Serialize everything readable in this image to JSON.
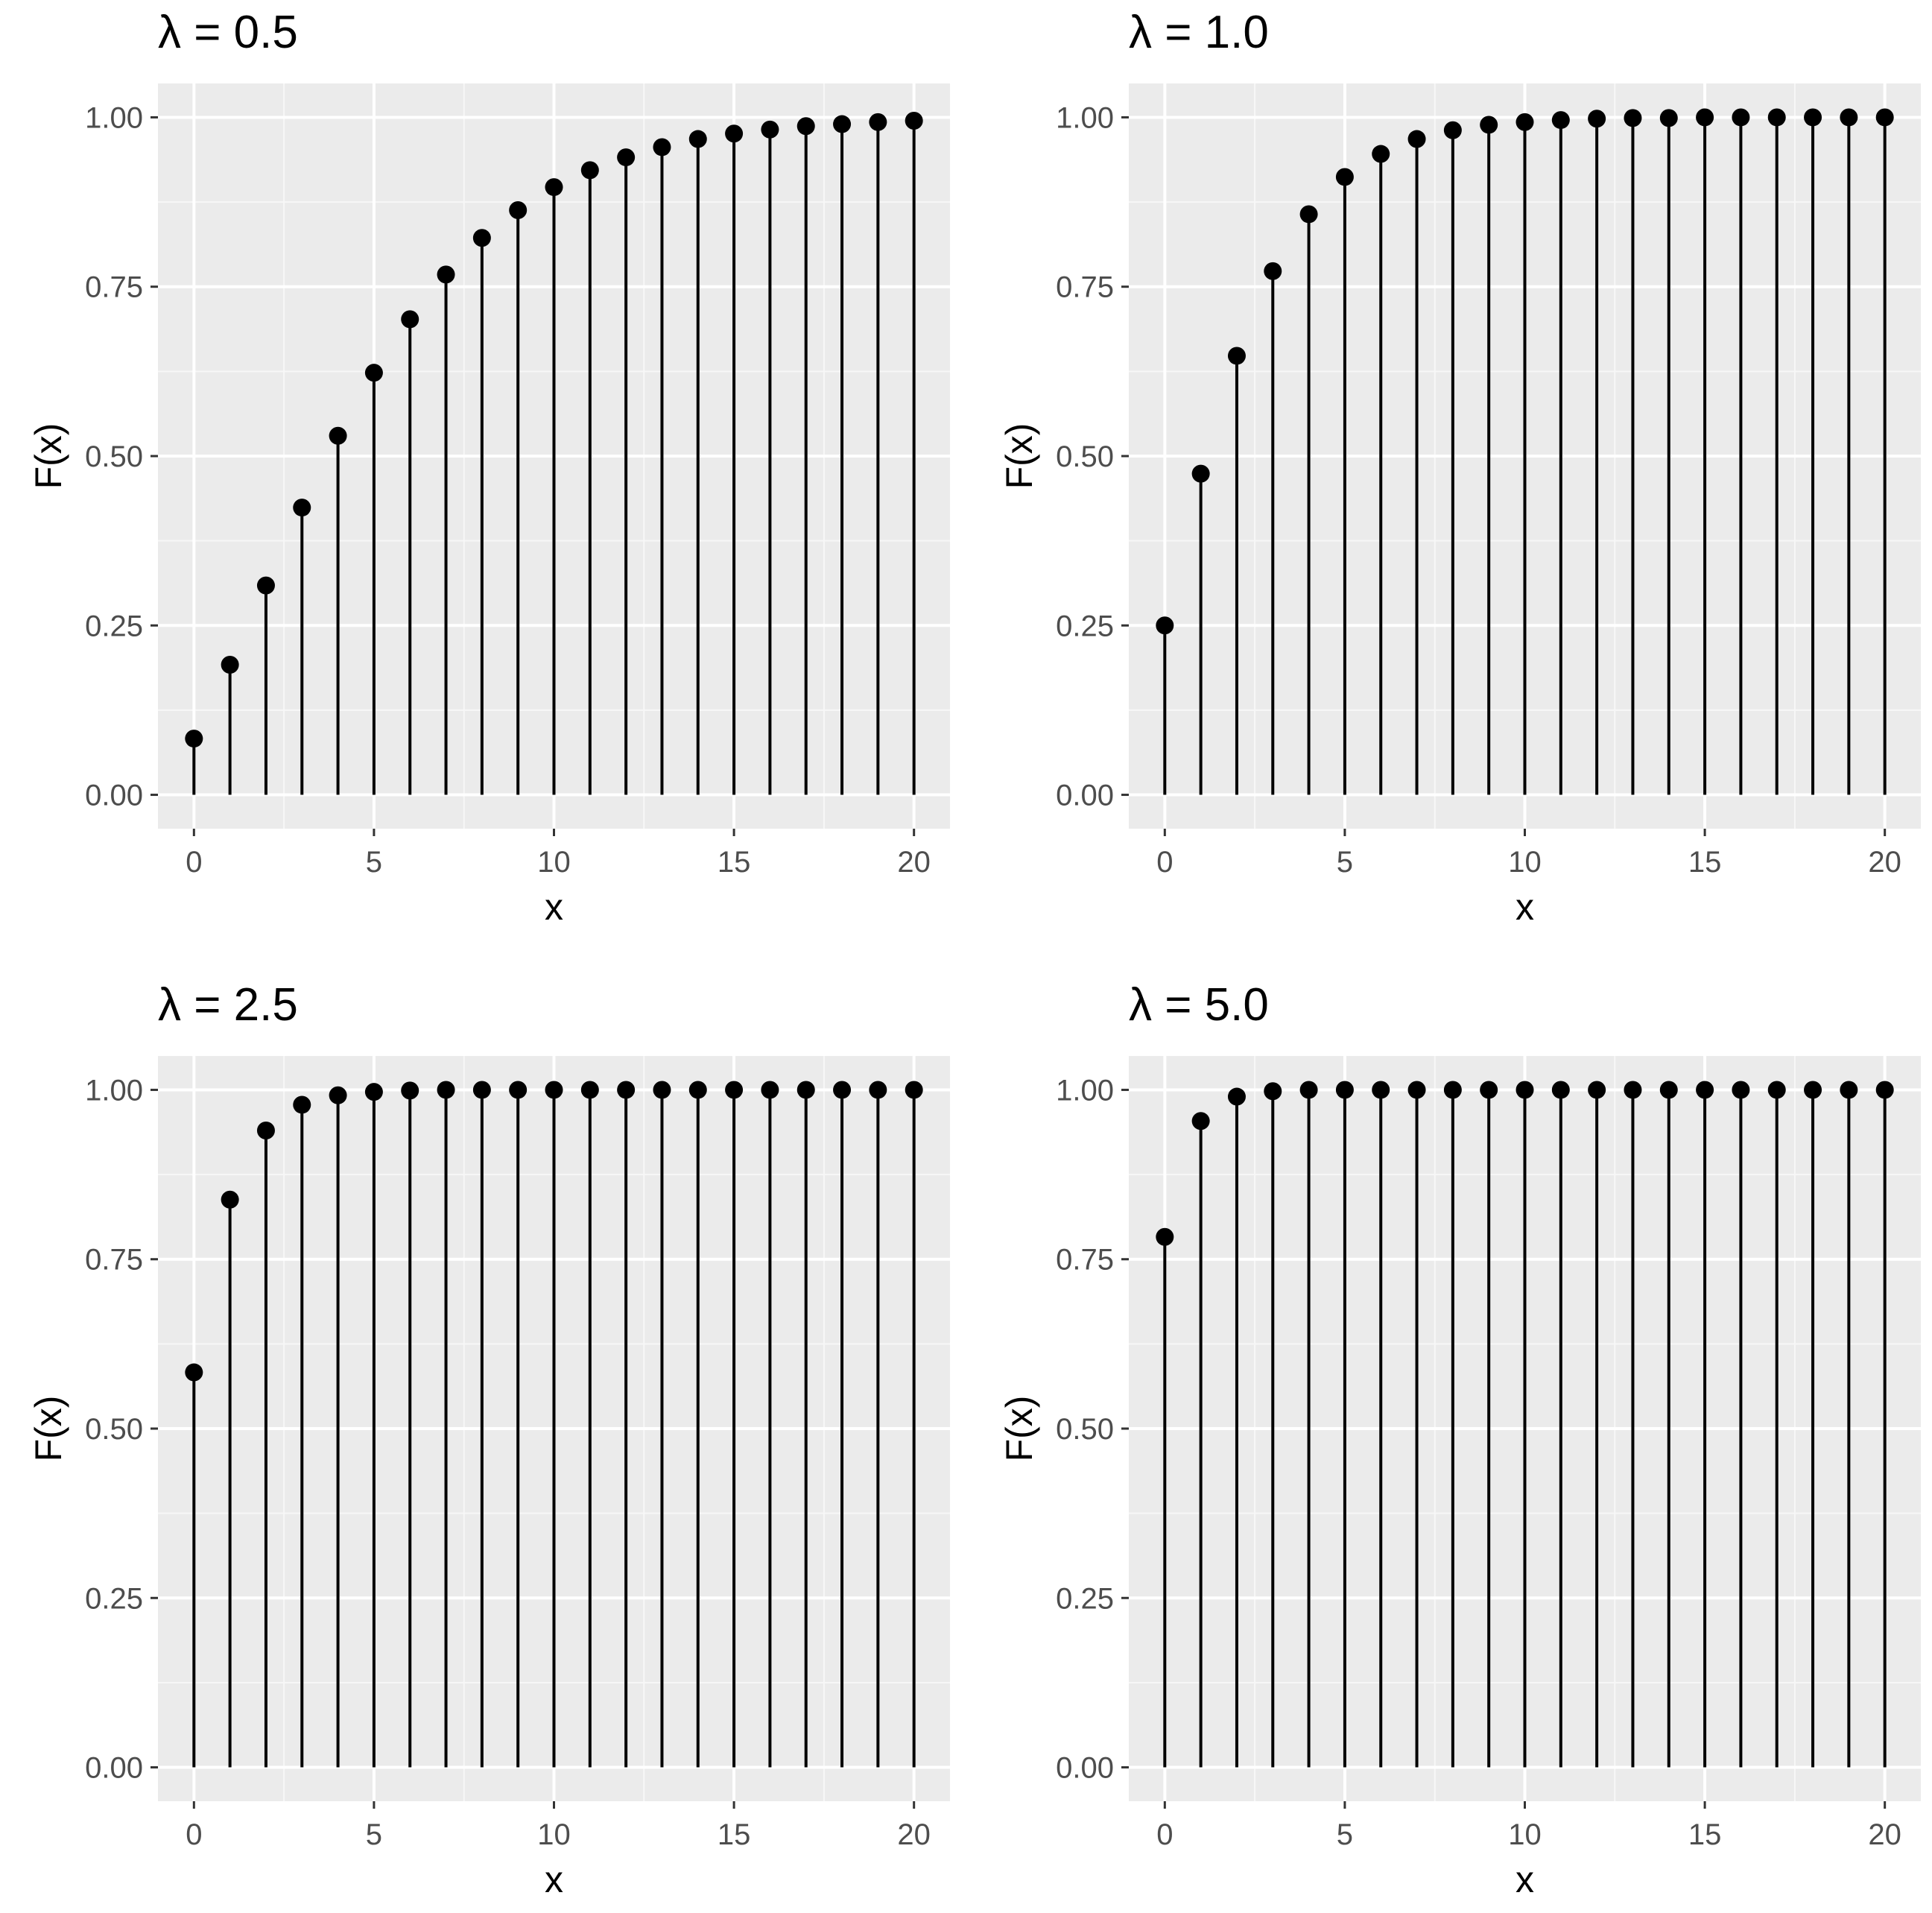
{
  "chart_data": [
    {
      "type": "scatter",
      "title": "λ = 0.5",
      "xlabel": "x",
      "ylabel": "F(x)",
      "xlim": [
        -1,
        21
      ],
      "ylim": [
        -0.05,
        1.05
      ],
      "xticks": [
        0,
        5,
        10,
        15,
        20
      ],
      "xtick_labels": [
        "0",
        "5",
        "10",
        "15",
        "20"
      ],
      "yticks": [
        0,
        0.25,
        0.5,
        0.75,
        1.0
      ],
      "ytick_labels": [
        "0.00",
        "0.25",
        "0.50",
        "0.75",
        "1.00"
      ],
      "grid": true,
      "x": [
        0,
        1,
        2,
        3,
        4,
        5,
        6,
        7,
        8,
        9,
        10,
        11,
        12,
        13,
        14,
        15,
        16,
        17,
        18,
        19,
        20
      ],
      "values": [
        0.083,
        0.192,
        0.309,
        0.424,
        0.53,
        0.623,
        0.702,
        0.768,
        0.822,
        0.863,
        0.897,
        0.922,
        0.941,
        0.956,
        0.968,
        0.976,
        0.982,
        0.987,
        0.99,
        0.993,
        0.995
      ]
    },
    {
      "type": "scatter",
      "title": "λ = 1.0",
      "xlabel": "x",
      "ylabel": "F(x)",
      "xlim": [
        -1,
        21
      ],
      "ylim": [
        -0.05,
        1.05
      ],
      "xticks": [
        0,
        5,
        10,
        15,
        20
      ],
      "xtick_labels": [
        "0",
        "5",
        "10",
        "15",
        "20"
      ],
      "yticks": [
        0,
        0.25,
        0.5,
        0.75,
        1.0
      ],
      "ytick_labels": [
        "0.00",
        "0.25",
        "0.50",
        "0.75",
        "1.00"
      ],
      "grid": true,
      "x": [
        0,
        1,
        2,
        3,
        4,
        5,
        6,
        7,
        8,
        9,
        10,
        11,
        12,
        13,
        14,
        15,
        16,
        17,
        18,
        19,
        20
      ],
      "values": [
        0.25,
        0.474,
        0.648,
        0.773,
        0.857,
        0.912,
        0.946,
        0.968,
        0.981,
        0.989,
        0.993,
        0.996,
        0.998,
        0.999,
        0.999,
        1.0,
        1.0,
        1.0,
        1.0,
        1.0,
        1.0
      ]
    },
    {
      "type": "scatter",
      "title": "λ = 2.5",
      "xlabel": "x",
      "ylabel": "F(x)",
      "xlim": [
        -1,
        21
      ],
      "ylim": [
        -0.05,
        1.05
      ],
      "xticks": [
        0,
        5,
        10,
        15,
        20
      ],
      "xtick_labels": [
        "0",
        "5",
        "10",
        "15",
        "20"
      ],
      "yticks": [
        0,
        0.25,
        0.5,
        0.75,
        1.0
      ],
      "ytick_labels": [
        "0.00",
        "0.25",
        "0.50",
        "0.75",
        "1.00"
      ],
      "grid": true,
      "x": [
        0,
        1,
        2,
        3,
        4,
        5,
        6,
        7,
        8,
        9,
        10,
        11,
        12,
        13,
        14,
        15,
        16,
        17,
        18,
        19,
        20
      ],
      "values": [
        0.583,
        0.838,
        0.94,
        0.978,
        0.992,
        0.997,
        0.999,
        1.0,
        1.0,
        1.0,
        1.0,
        1.0,
        1.0,
        1.0,
        1.0,
        1.0,
        1.0,
        1.0,
        1.0,
        1.0,
        1.0
      ]
    },
    {
      "type": "scatter",
      "title": "λ = 5.0",
      "xlabel": "x",
      "ylabel": "F(x)",
      "xlim": [
        -1,
        21
      ],
      "ylim": [
        -0.05,
        1.05
      ],
      "xticks": [
        0,
        5,
        10,
        15,
        20
      ],
      "xtick_labels": [
        "0",
        "5",
        "10",
        "15",
        "20"
      ],
      "yticks": [
        0,
        0.25,
        0.5,
        0.75,
        1.0
      ],
      "ytick_labels": [
        "0.00",
        "0.25",
        "0.50",
        "0.75",
        "1.00"
      ],
      "grid": true,
      "x": [
        0,
        1,
        2,
        3,
        4,
        5,
        6,
        7,
        8,
        9,
        10,
        11,
        12,
        13,
        14,
        15,
        16,
        17,
        18,
        19,
        20
      ],
      "values": [
        0.783,
        0.954,
        0.99,
        0.998,
        1.0,
        1.0,
        1.0,
        1.0,
        1.0,
        1.0,
        1.0,
        1.0,
        1.0,
        1.0,
        1.0,
        1.0,
        1.0,
        1.0,
        1.0,
        1.0,
        1.0
      ]
    }
  ],
  "colors": {
    "panel_background": "#ebebeb",
    "grid_major": "#ffffff",
    "grid_minor": "#f7f7f7",
    "marks": "#000000",
    "tick_text": "#4d4d4d"
  }
}
